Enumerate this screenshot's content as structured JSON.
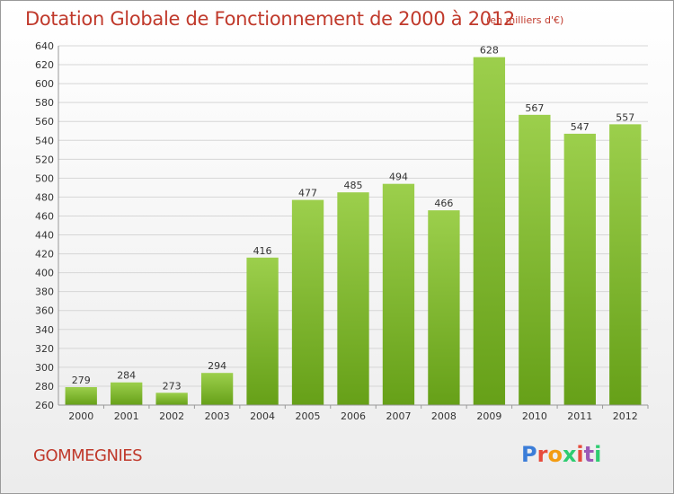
{
  "title": "Dotation Globale de Fonctionnement de 2000 à 2012",
  "unit": "(en milliers d'€)",
  "commune": "GOMMEGNIES",
  "logo": {
    "text": "Proxiti",
    "colors": [
      "#3b7dd8",
      "#e74c3c",
      "#f39c12",
      "#2ecc71",
      "#e74c3c",
      "#9b59b6",
      "#2ecc71"
    ]
  },
  "colors": {
    "bar_light": "#9ccf4c",
    "bar_dark": "#66a018",
    "title": "#c0392b"
  },
  "chart_data": {
    "type": "bar",
    "categories": [
      "2000",
      "2001",
      "2002",
      "2003",
      "2004",
      "2005",
      "2006",
      "2007",
      "2008",
      "2009",
      "2010",
      "2011",
      "2012"
    ],
    "values": [
      279,
      284,
      273,
      294,
      416,
      477,
      485,
      494,
      466,
      628,
      567,
      547,
      557
    ],
    "ylim": [
      260,
      640
    ],
    "yticks": [
      260,
      280,
      300,
      320,
      340,
      360,
      380,
      400,
      420,
      440,
      460,
      480,
      500,
      520,
      540,
      560,
      580,
      600,
      620,
      640
    ],
    "grid": true
  }
}
